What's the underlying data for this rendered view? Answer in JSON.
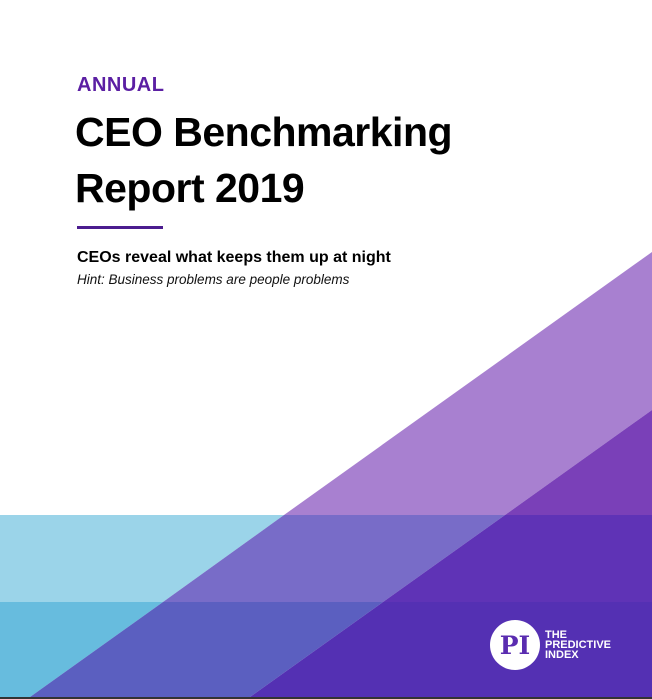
{
  "cover": {
    "kicker": "ANNUAL",
    "title_line1": "CEO Benchmarking",
    "title_line2": "Report 2019",
    "subtitle": "CEOs reveal what keeps them up at night",
    "hint": "Hint: Business problems are people problems"
  },
  "logo": {
    "mark": "PI",
    "line1": "THE",
    "line2": "PREDICTIVE",
    "line3": "INDEX"
  },
  "colors": {
    "accent": "#5B1FA3",
    "light_purple": "#A880D0",
    "dark_purple": "#5430B3",
    "light_blue": "#9BD4E9",
    "blue": "#67BCDE"
  }
}
